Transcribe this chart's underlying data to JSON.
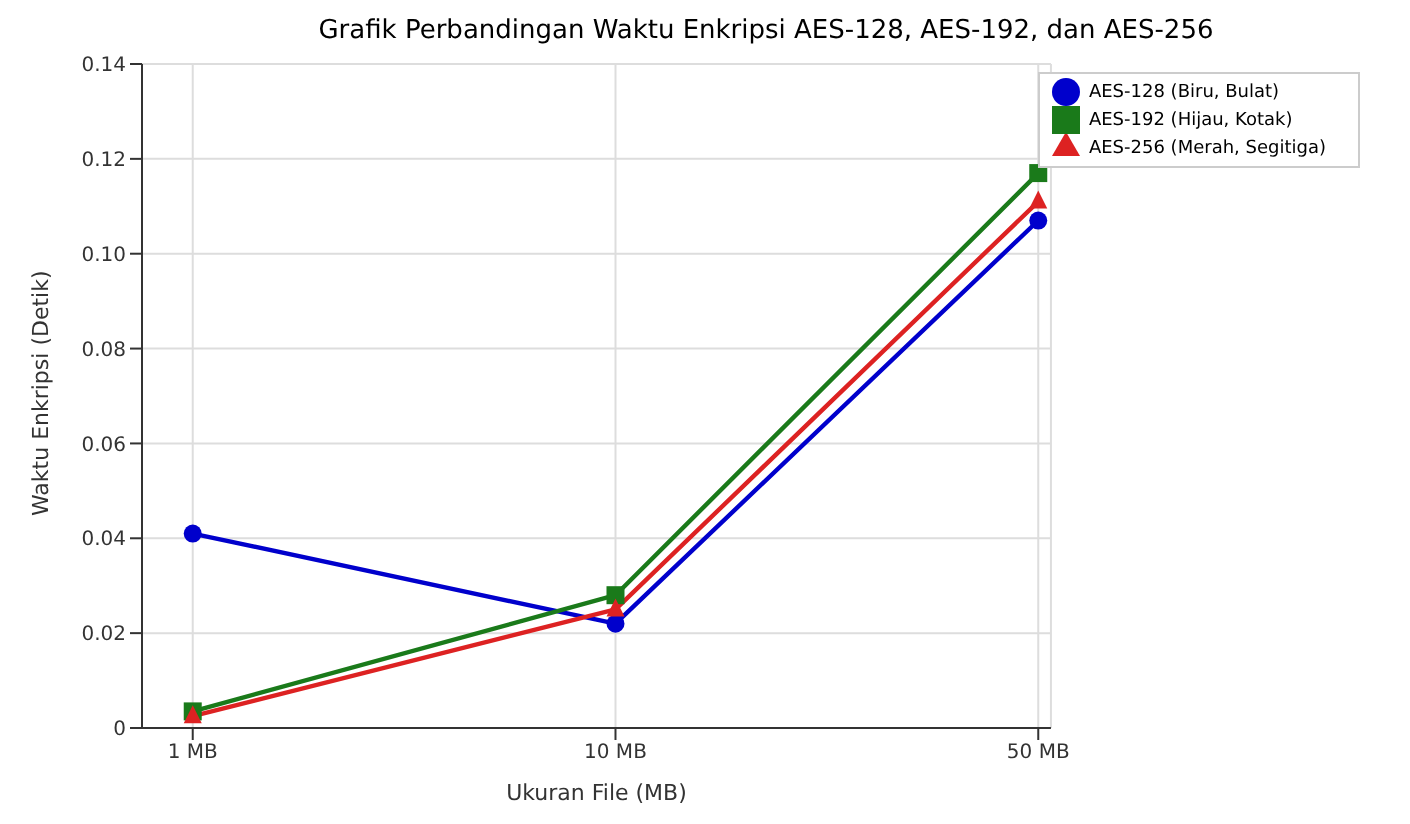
{
  "chart_data": {
    "type": "line",
    "title": "Grafik Perbandingan Waktu Enkripsi AES-128, AES-192, dan AES-256",
    "xlabel": "Ukuran File (MB)",
    "ylabel": "Waktu Enkripsi (Detik)",
    "categories": [
      "1 MB",
      "10 MB",
      "50 MB"
    ],
    "series": [
      {
        "name": "AES-128 (Biru, Bulat)",
        "color": "#0000cc",
        "marker": "circle",
        "values": [
          0.041,
          0.022,
          0.107
        ]
      },
      {
        "name": "AES-192 (Hijau, Kotak)",
        "color": "#1a7a1a",
        "marker": "square",
        "values": [
          0.0035,
          0.028,
          0.117
        ]
      },
      {
        "name": "AES-256 (Merah, Segitiga)",
        "color": "#dd2222",
        "marker": "triangle",
        "values": [
          0.0025,
          0.025,
          0.111
        ]
      }
    ],
    "ylim": [
      0,
      0.14
    ],
    "yticks": [
      0,
      0.02,
      0.04,
      0.06,
      0.08,
      {
        "value": 0.1,
        "label": "0.10"
      },
      0.12,
      0.14
    ],
    "grid": true,
    "legend": "top right"
  }
}
